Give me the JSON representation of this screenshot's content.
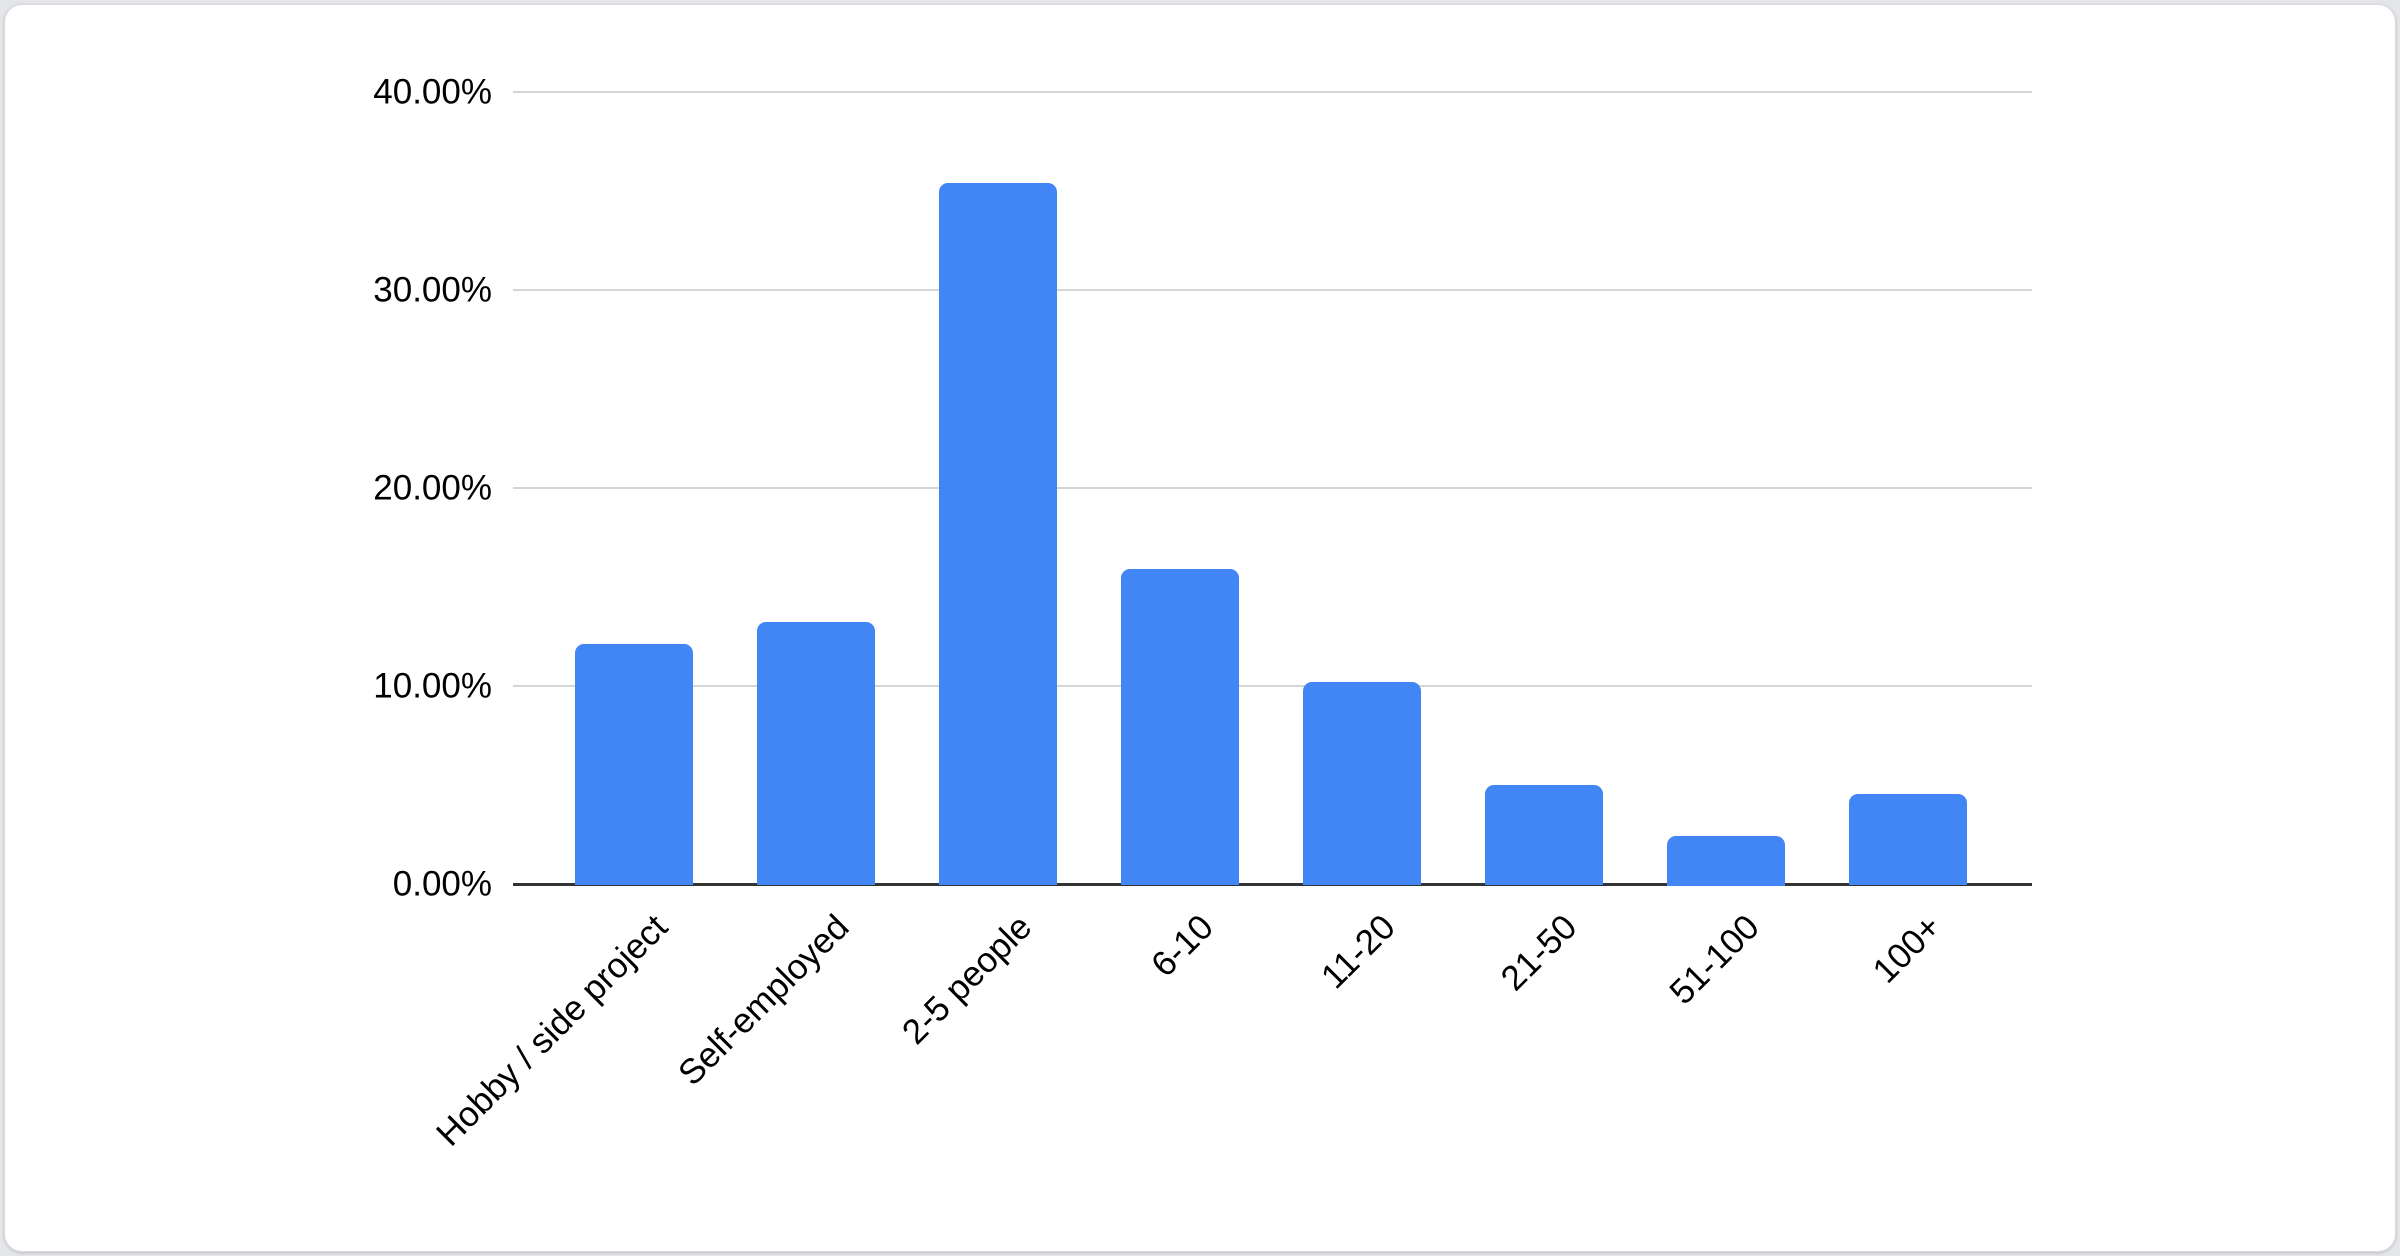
{
  "chart_data": {
    "type": "bar",
    "title": "",
    "xlabel": "",
    "ylabel": "",
    "categories": [
      "Hobby / side project",
      "Self-employed",
      "2-5 people",
      "6-10",
      "11-20",
      "21-50",
      "51-100",
      "100+"
    ],
    "values": [
      12.2,
      13.3,
      35.5,
      16.0,
      10.3,
      5.1,
      2.5,
      4.6
    ],
    "value_unit": "%",
    "ylim": [
      0,
      40
    ],
    "y_ticks": [
      {
        "value": 0,
        "label": "0.00%"
      },
      {
        "value": 10,
        "label": "10.00%"
      },
      {
        "value": 20,
        "label": "20.00%"
      },
      {
        "value": 30,
        "label": "30.00%"
      },
      {
        "value": 40,
        "label": "40.00%"
      }
    ],
    "legend": "none",
    "grid": "horizontal",
    "colors": {
      "bar": "#4285F4",
      "gridline": "#d5d5d5",
      "axis_line": "#333333",
      "tick_label": "#000000",
      "card_background": "#ffffff",
      "card_border": "#d9dbde",
      "page_background": "#e4e6e9"
    }
  }
}
